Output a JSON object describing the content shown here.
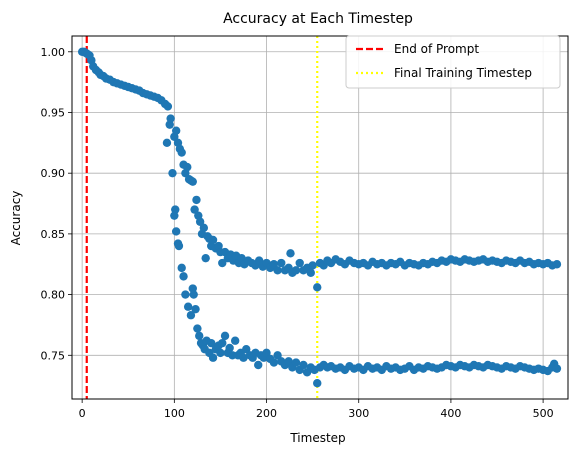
{
  "chart_data": {
    "type": "scatter",
    "title": "Accuracy at Each Timestep",
    "xlabel": "Timestep",
    "ylabel": "Accuracy",
    "xlim": [
      -11,
      527
    ],
    "ylim": [
      0.714,
      1.013
    ],
    "xticks": [
      0,
      100,
      200,
      300,
      400,
      500
    ],
    "xtick_labels": [
      "0",
      "100",
      "200",
      "300",
      "400",
      "500"
    ],
    "yticks": [
      0.75,
      0.8,
      0.85,
      0.9,
      0.95,
      1.0
    ],
    "ytick_labels": [
      "0.75",
      "0.80",
      "0.85",
      "0.90",
      "0.95",
      "1.00"
    ],
    "grid": true,
    "legend_position": "top-right",
    "marker_color": "#1f77b4",
    "vertical_lines": [
      {
        "name": "End of Prompt",
        "x": 5,
        "color": "#ff0000",
        "style": "dashed"
      },
      {
        "name": "Final Training Timestep",
        "x": 255,
        "color": "#ffff00",
        "style": "dotted"
      }
    ],
    "series": [
      {
        "values_xy": [
          [
            0,
            1.0
          ],
          [
            2,
            1.0
          ],
          [
            4,
            0.999
          ],
          [
            6,
            0.998
          ],
          [
            8,
            0.997
          ],
          [
            10,
            0.993
          ],
          [
            12,
            0.988
          ],
          [
            15,
            0.985
          ],
          [
            18,
            0.983
          ],
          [
            20,
            0.981
          ],
          [
            23,
            0.98
          ],
          [
            26,
            0.978
          ],
          [
            30,
            0.977
          ],
          [
            34,
            0.975
          ],
          [
            38,
            0.974
          ],
          [
            42,
            0.973
          ],
          [
            46,
            0.972
          ],
          [
            50,
            0.971
          ],
          [
            54,
            0.97
          ],
          [
            58,
            0.969
          ],
          [
            62,
            0.968
          ],
          [
            66,
            0.966
          ],
          [
            70,
            0.965
          ],
          [
            74,
            0.964
          ],
          [
            78,
            0.963
          ],
          [
            82,
            0.962
          ],
          [
            86,
            0.96
          ],
          [
            90,
            0.957
          ],
          [
            92,
            0.925
          ],
          [
            93,
            0.955
          ],
          [
            95,
            0.94
          ],
          [
            96,
            0.945
          ],
          [
            98,
            0.9
          ],
          [
            100,
            0.93
          ],
          [
            102,
            0.935
          ],
          [
            104,
            0.925
          ],
          [
            106,
            0.92
          ],
          [
            108,
            0.917
          ],
          [
            110,
            0.907
          ],
          [
            112,
            0.9
          ],
          [
            114,
            0.905
          ],
          [
            116,
            0.895
          ],
          [
            118,
            0.894
          ],
          [
            120,
            0.893
          ],
          [
            122,
            0.87
          ],
          [
            124,
            0.878
          ],
          [
            126,
            0.865
          ],
          [
            128,
            0.86
          ],
          [
            130,
            0.85
          ],
          [
            132,
            0.855
          ],
          [
            134,
            0.83
          ],
          [
            136,
            0.848
          ],
          [
            138,
            0.846
          ],
          [
            140,
            0.84
          ],
          [
            142,
            0.845
          ],
          [
            145,
            0.838
          ],
          [
            148,
            0.84
          ],
          [
            150,
            0.835
          ],
          [
            152,
            0.826
          ],
          [
            155,
            0.835
          ],
          [
            158,
            0.83
          ],
          [
            161,
            0.833
          ],
          [
            164,
            0.828
          ],
          [
            167,
            0.832
          ],
          [
            170,
            0.826
          ],
          [
            173,
            0.83
          ],
          [
            176,
            0.825
          ],
          [
            180,
            0.828
          ],
          [
            184,
            0.826
          ],
          [
            188,
            0.824
          ],
          [
            192,
            0.828
          ],
          [
            196,
            0.823
          ],
          [
            200,
            0.826
          ],
          [
            204,
            0.822
          ],
          [
            208,
            0.825
          ],
          [
            212,
            0.82
          ],
          [
            216,
            0.826
          ],
          [
            220,
            0.82
          ],
          [
            224,
            0.822
          ],
          [
            226,
            0.834
          ],
          [
            228,
            0.818
          ],
          [
            232,
            0.82
          ],
          [
            236,
            0.826
          ],
          [
            240,
            0.82
          ],
          [
            244,
            0.822
          ],
          [
            248,
            0.818
          ],
          [
            250,
            0.824
          ],
          [
            255,
            0.806
          ],
          [
            258,
            0.826
          ],
          [
            262,
            0.824
          ],
          [
            266,
            0.828
          ],
          [
            270,
            0.826
          ],
          [
            275,
            0.829
          ],
          [
            280,
            0.827
          ],
          [
            285,
            0.825
          ],
          [
            290,
            0.828
          ],
          [
            295,
            0.826
          ],
          [
            300,
            0.825
          ],
          [
            305,
            0.826
          ],
          [
            310,
            0.824
          ],
          [
            315,
            0.827
          ],
          [
            320,
            0.825
          ],
          [
            325,
            0.826
          ],
          [
            330,
            0.824
          ],
          [
            335,
            0.826
          ],
          [
            340,
            0.825
          ],
          [
            345,
            0.827
          ],
          [
            350,
            0.824
          ],
          [
            355,
            0.826
          ],
          [
            360,
            0.825
          ],
          [
            365,
            0.824
          ],
          [
            370,
            0.826
          ],
          [
            375,
            0.825
          ],
          [
            380,
            0.827
          ],
          [
            385,
            0.826
          ],
          [
            390,
            0.828
          ],
          [
            395,
            0.827
          ],
          [
            400,
            0.829
          ],
          [
            405,
            0.828
          ],
          [
            410,
            0.827
          ],
          [
            415,
            0.829
          ],
          [
            420,
            0.828
          ],
          [
            425,
            0.827
          ],
          [
            430,
            0.828
          ],
          [
            435,
            0.829
          ],
          [
            440,
            0.827
          ],
          [
            445,
            0.828
          ],
          [
            450,
            0.827
          ],
          [
            455,
            0.826
          ],
          [
            460,
            0.828
          ],
          [
            465,
            0.827
          ],
          [
            470,
            0.826
          ],
          [
            475,
            0.828
          ],
          [
            480,
            0.826
          ],
          [
            485,
            0.827
          ],
          [
            490,
            0.825
          ],
          [
            495,
            0.826
          ],
          [
            500,
            0.825
          ],
          [
            505,
            0.826
          ],
          [
            510,
            0.824
          ],
          [
            515,
            0.825
          ],
          [
            100,
            0.865
          ],
          [
            101,
            0.87
          ],
          [
            102,
            0.852
          ],
          [
            104,
            0.842
          ],
          [
            105,
            0.84
          ],
          [
            108,
            0.822
          ],
          [
            110,
            0.815
          ],
          [
            112,
            0.8
          ],
          [
            115,
            0.79
          ],
          [
            118,
            0.783
          ],
          [
            120,
            0.805
          ],
          [
            121,
            0.8
          ],
          [
            123,
            0.788
          ],
          [
            125,
            0.772
          ],
          [
            127,
            0.766
          ],
          [
            129,
            0.76
          ],
          [
            131,
            0.758
          ],
          [
            133,
            0.755
          ],
          [
            135,
            0.762
          ],
          [
            138,
            0.752
          ],
          [
            140,
            0.76
          ],
          [
            142,
            0.748
          ],
          [
            145,
            0.755
          ],
          [
            148,
            0.758
          ],
          [
            150,
            0.752
          ],
          [
            152,
            0.76
          ],
          [
            155,
            0.766
          ],
          [
            158,
            0.752
          ],
          [
            160,
            0.756
          ],
          [
            163,
            0.75
          ],
          [
            166,
            0.762
          ],
          [
            169,
            0.75
          ],
          [
            172,
            0.752
          ],
          [
            175,
            0.748
          ],
          [
            178,
            0.755
          ],
          [
            182,
            0.75
          ],
          [
            185,
            0.748
          ],
          [
            188,
            0.752
          ],
          [
            191,
            0.742
          ],
          [
            194,
            0.75
          ],
          [
            197,
            0.748
          ],
          [
            200,
            0.752
          ],
          [
            204,
            0.747
          ],
          [
            208,
            0.744
          ],
          [
            212,
            0.75
          ],
          [
            216,
            0.745
          ],
          [
            220,
            0.742
          ],
          [
            224,
            0.745
          ],
          [
            228,
            0.74
          ],
          [
            232,
            0.744
          ],
          [
            236,
            0.738
          ],
          [
            240,
            0.742
          ],
          [
            244,
            0.736
          ],
          [
            248,
            0.74
          ],
          [
            252,
            0.738
          ],
          [
            255,
            0.727
          ],
          [
            258,
            0.74
          ],
          [
            262,
            0.742
          ],
          [
            266,
            0.74
          ],
          [
            270,
            0.741
          ],
          [
            275,
            0.739
          ],
          [
            280,
            0.74
          ],
          [
            285,
            0.738
          ],
          [
            290,
            0.741
          ],
          [
            295,
            0.739
          ],
          [
            300,
            0.74
          ],
          [
            305,
            0.738
          ],
          [
            310,
            0.741
          ],
          [
            315,
            0.739
          ],
          [
            320,
            0.74
          ],
          [
            325,
            0.738
          ],
          [
            330,
            0.741
          ],
          [
            335,
            0.739
          ],
          [
            340,
            0.74
          ],
          [
            345,
            0.738
          ],
          [
            350,
            0.739
          ],
          [
            355,
            0.741
          ],
          [
            360,
            0.738
          ],
          [
            365,
            0.74
          ],
          [
            370,
            0.739
          ],
          [
            375,
            0.741
          ],
          [
            380,
            0.74
          ],
          [
            385,
            0.739
          ],
          [
            390,
            0.74
          ],
          [
            395,
            0.742
          ],
          [
            400,
            0.741
          ],
          [
            405,
            0.74
          ],
          [
            410,
            0.742
          ],
          [
            415,
            0.741
          ],
          [
            420,
            0.74
          ],
          [
            425,
            0.742
          ],
          [
            430,
            0.741
          ],
          [
            435,
            0.74
          ],
          [
            440,
            0.742
          ],
          [
            445,
            0.741
          ],
          [
            450,
            0.74
          ],
          [
            455,
            0.739
          ],
          [
            460,
            0.741
          ],
          [
            465,
            0.74
          ],
          [
            470,
            0.739
          ],
          [
            475,
            0.741
          ],
          [
            480,
            0.74
          ],
          [
            485,
            0.739
          ],
          [
            490,
            0.738
          ],
          [
            495,
            0.739
          ],
          [
            500,
            0.738
          ],
          [
            505,
            0.737
          ],
          [
            510,
            0.74
          ],
          [
            512,
            0.743
          ],
          [
            515,
            0.739
          ]
        ]
      }
    ]
  }
}
